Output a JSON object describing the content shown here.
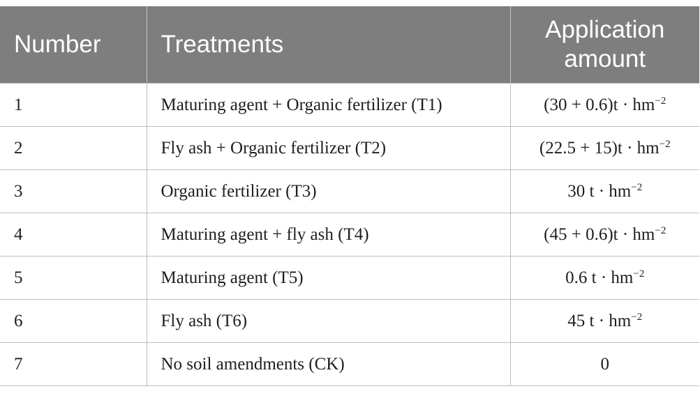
{
  "table": {
    "headers": [
      "Number",
      "Treatments",
      "Application amount"
    ],
    "rows": [
      {
        "number": "1",
        "treatment": "Maturing agent + Organic fertilizer (T1)",
        "amount": "(30 + 0.6)t · hm",
        "exp": "−2"
      },
      {
        "number": "2",
        "treatment": "Fly ash + Organic fertilizer (T2)",
        "amount": "(22.5 + 15)t · hm",
        "exp": "−2"
      },
      {
        "number": "3",
        "treatment": "Organic fertilizer (T3)",
        "amount": "30 t · hm",
        "exp": "−2"
      },
      {
        "number": "4",
        "treatment": "Maturing agent + fly ash (T4)",
        "amount": "(45 + 0.6)t · hm",
        "exp": "−2"
      },
      {
        "number": "5",
        "treatment": "Maturing agent (T5)",
        "amount": "0.6 t · hm",
        "exp": "−2"
      },
      {
        "number": "6",
        "treatment": "Fly ash (T6)",
        "amount": "45 t · hm",
        "exp": "−2"
      },
      {
        "number": "7",
        "treatment": "No soil amendments (CK)",
        "amount": "0",
        "exp": ""
      }
    ]
  }
}
